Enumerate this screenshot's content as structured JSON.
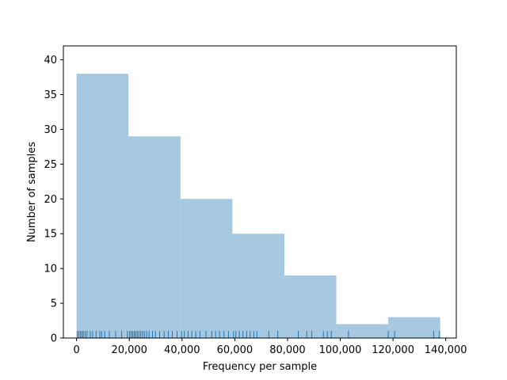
{
  "chart_data": {
    "type": "bar",
    "title": "",
    "xlabel": "Frequency per sample",
    "ylabel": "Number of samples",
    "bar_color": "#a6c8e0",
    "rug_color": "#1f77b4",
    "xlim": [
      -5000,
      144000
    ],
    "ylim": [
      0,
      42
    ],
    "xticks": [
      0,
      20000,
      40000,
      60000,
      80000,
      100000,
      120000,
      140000
    ],
    "xtick_labels": [
      "0",
      "20,000",
      "40,000",
      "60,000",
      "80,000",
      "100,000",
      "120,000",
      "140,000"
    ],
    "yticks": [
      0,
      5,
      10,
      15,
      20,
      25,
      30,
      35,
      40
    ],
    "ytick_labels": [
      "0",
      "5",
      "10",
      "15",
      "20",
      "25",
      "30",
      "35",
      "40"
    ],
    "bins": [
      {
        "x0": 0,
        "x1": 19700,
        "count": 38
      },
      {
        "x0": 19700,
        "x1": 39400,
        "count": 29
      },
      {
        "x0": 39400,
        "x1": 59100,
        "count": 20
      },
      {
        "x0": 59100,
        "x1": 78800,
        "count": 15
      },
      {
        "x0": 78800,
        "x1": 98500,
        "count": 9
      },
      {
        "x0": 98500,
        "x1": 118200,
        "count": 2
      },
      {
        "x0": 118200,
        "x1": 137900,
        "count": 3
      }
    ],
    "rug_values": [
      300,
      900,
      1500,
      2100,
      2600,
      3300,
      4000,
      5200,
      6100,
      7400,
      8800,
      9500,
      10700,
      12400,
      14800,
      17100,
      19300,
      20100,
      20700,
      21300,
      21900,
      22400,
      23000,
      23600,
      24300,
      25000,
      25700,
      26600,
      27500,
      28800,
      29900,
      31500,
      33200,
      34800,
      36300,
      38100,
      39800,
      40900,
      42300,
      43700,
      45200,
      46800,
      49100,
      51300,
      52700,
      54200,
      55900,
      57600,
      59500,
      60400,
      61700,
      63100,
      64500,
      65800,
      67200,
      68400,
      72900,
      76300,
      84100,
      87300,
      89200,
      93600,
      95100,
      96600,
      103100,
      118200,
      120600,
      135400,
      137600
    ]
  }
}
